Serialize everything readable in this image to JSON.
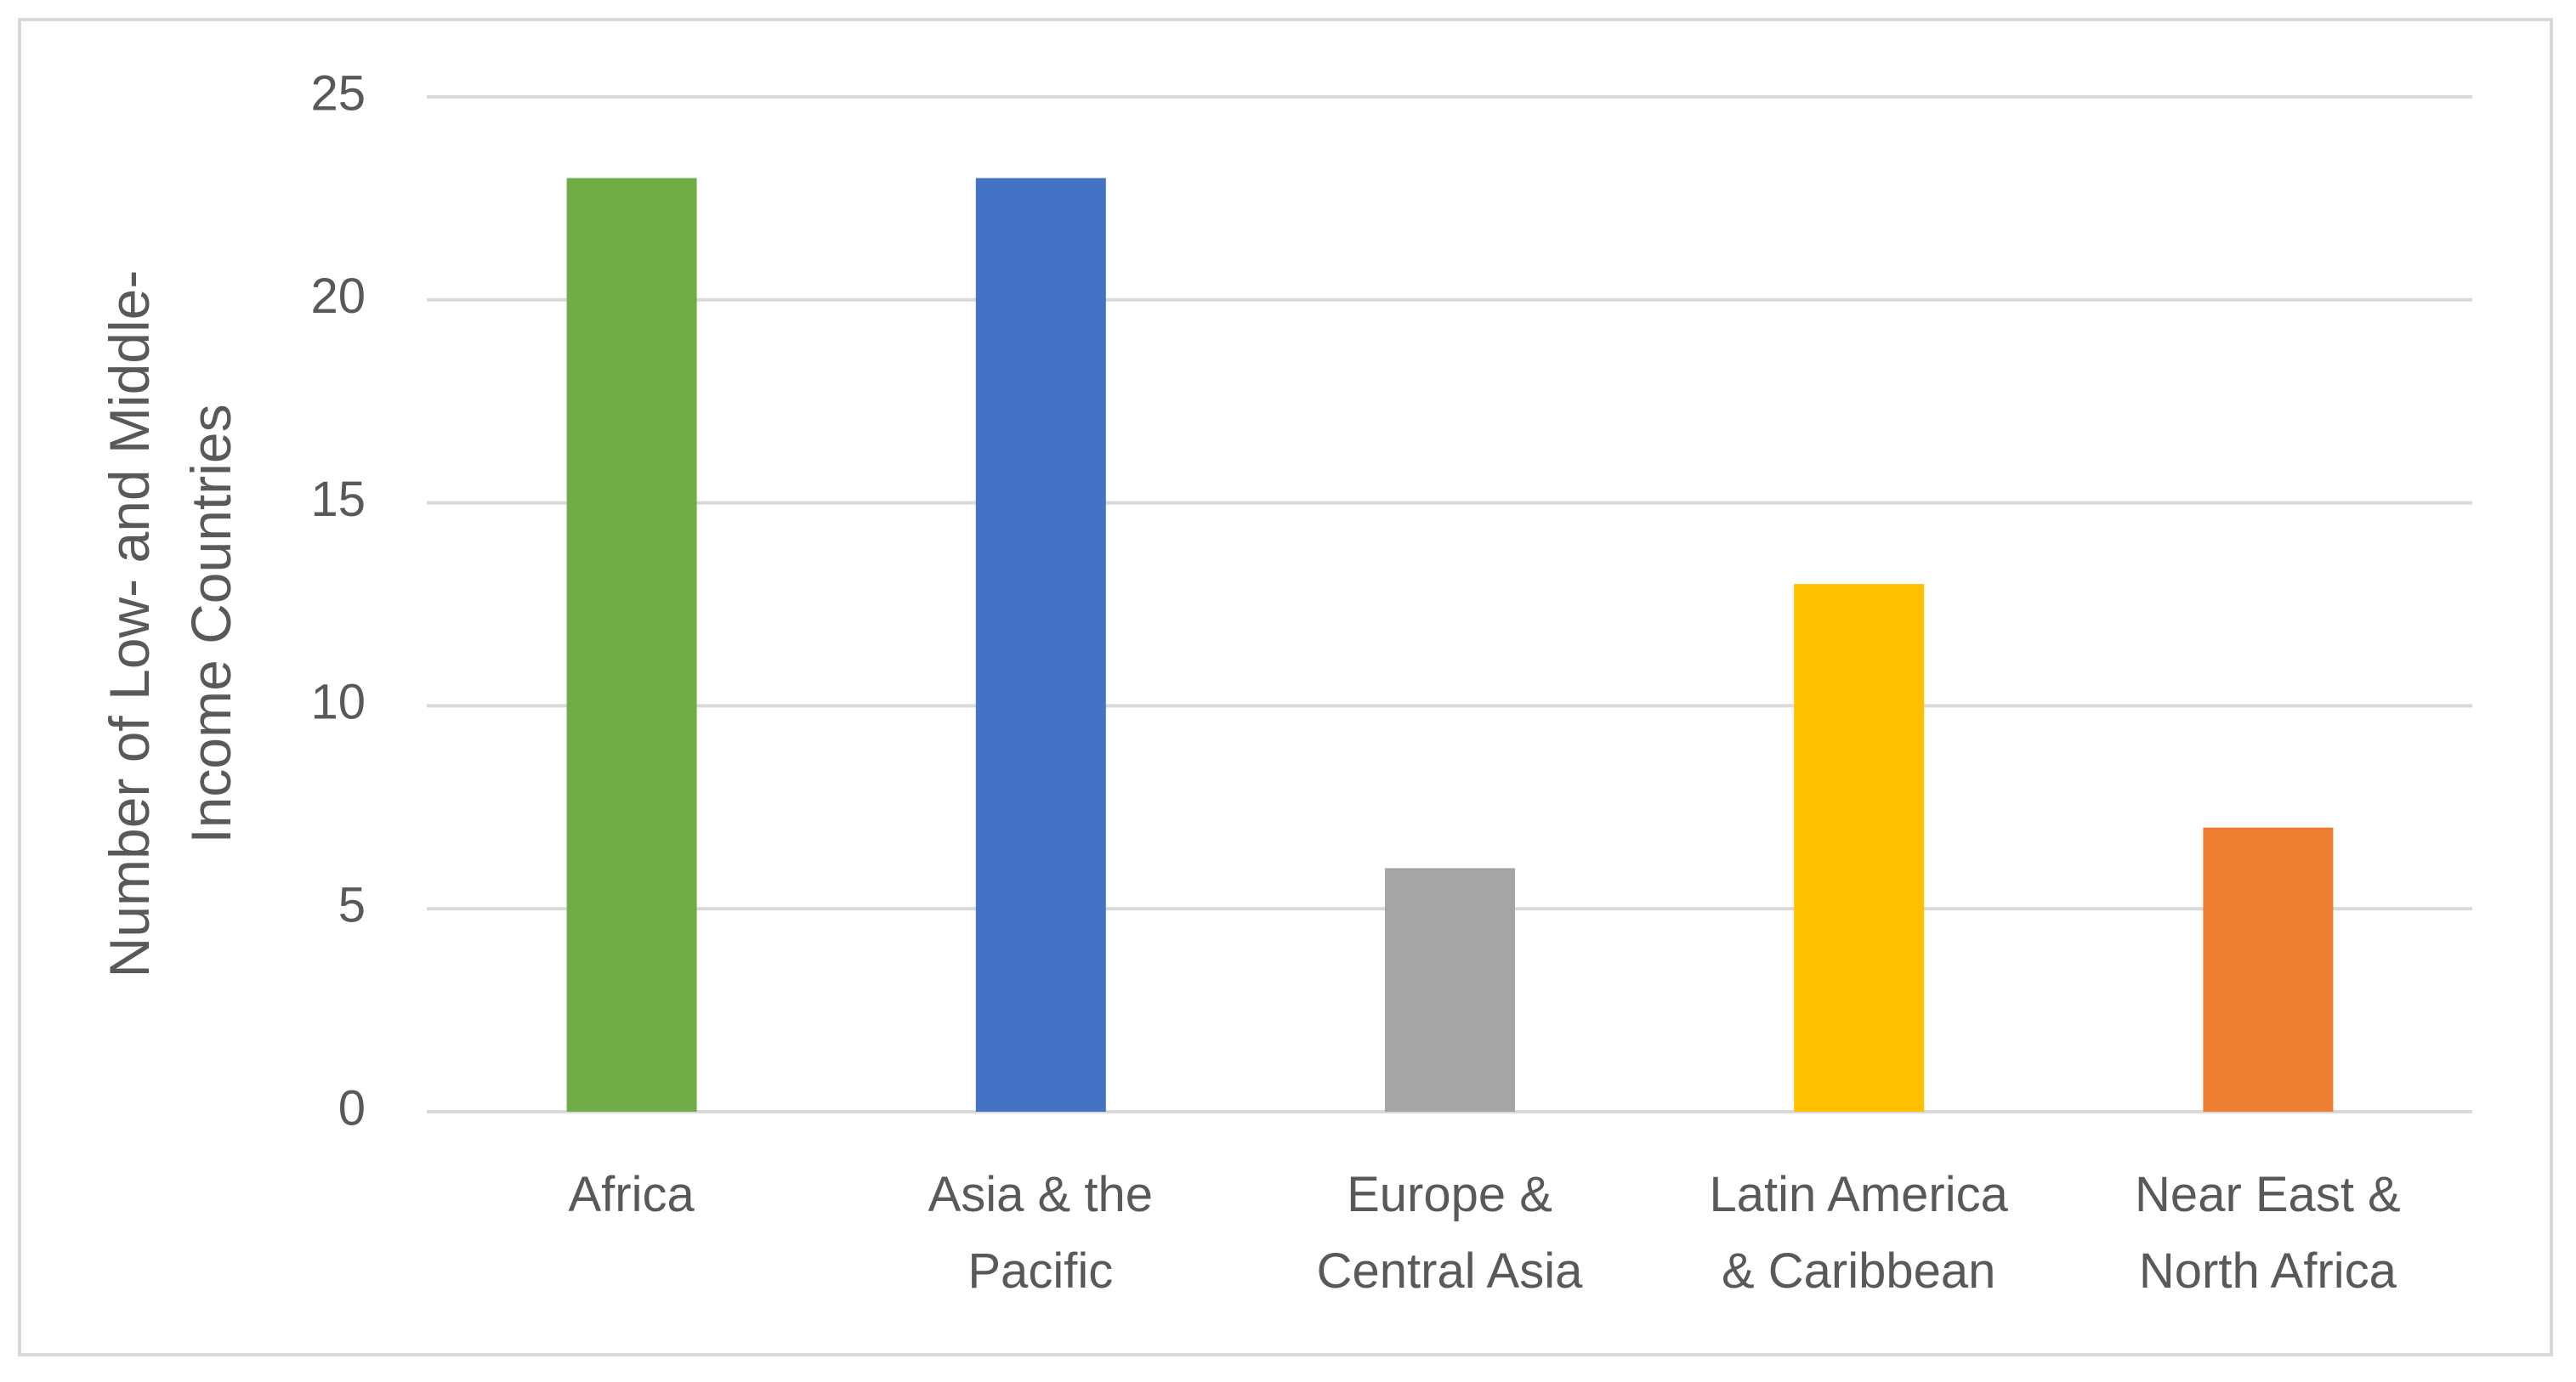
{
  "chart_data": {
    "type": "bar",
    "y_label": [
      "Number of Low- and Middle-",
      "Income Countries"
    ],
    "categories": [
      [
        "Africa"
      ],
      [
        "Asia & the",
        "Pacific"
      ],
      [
        "Europe &",
        "Central Asia"
      ],
      [
        "Latin America",
        "& Caribbean"
      ],
      [
        "Near East &",
        "North Africa"
      ]
    ],
    "values": [
      23,
      23,
      6,
      13,
      7
    ],
    "colors": [
      "#70ad47",
      "#4472c4",
      "#a5a5a5",
      "#ffc000",
      "#ed7d31"
    ],
    "ylim": [
      0,
      25
    ],
    "yticks": [
      0,
      5,
      10,
      15,
      20,
      25
    ],
    "grid": true
  }
}
